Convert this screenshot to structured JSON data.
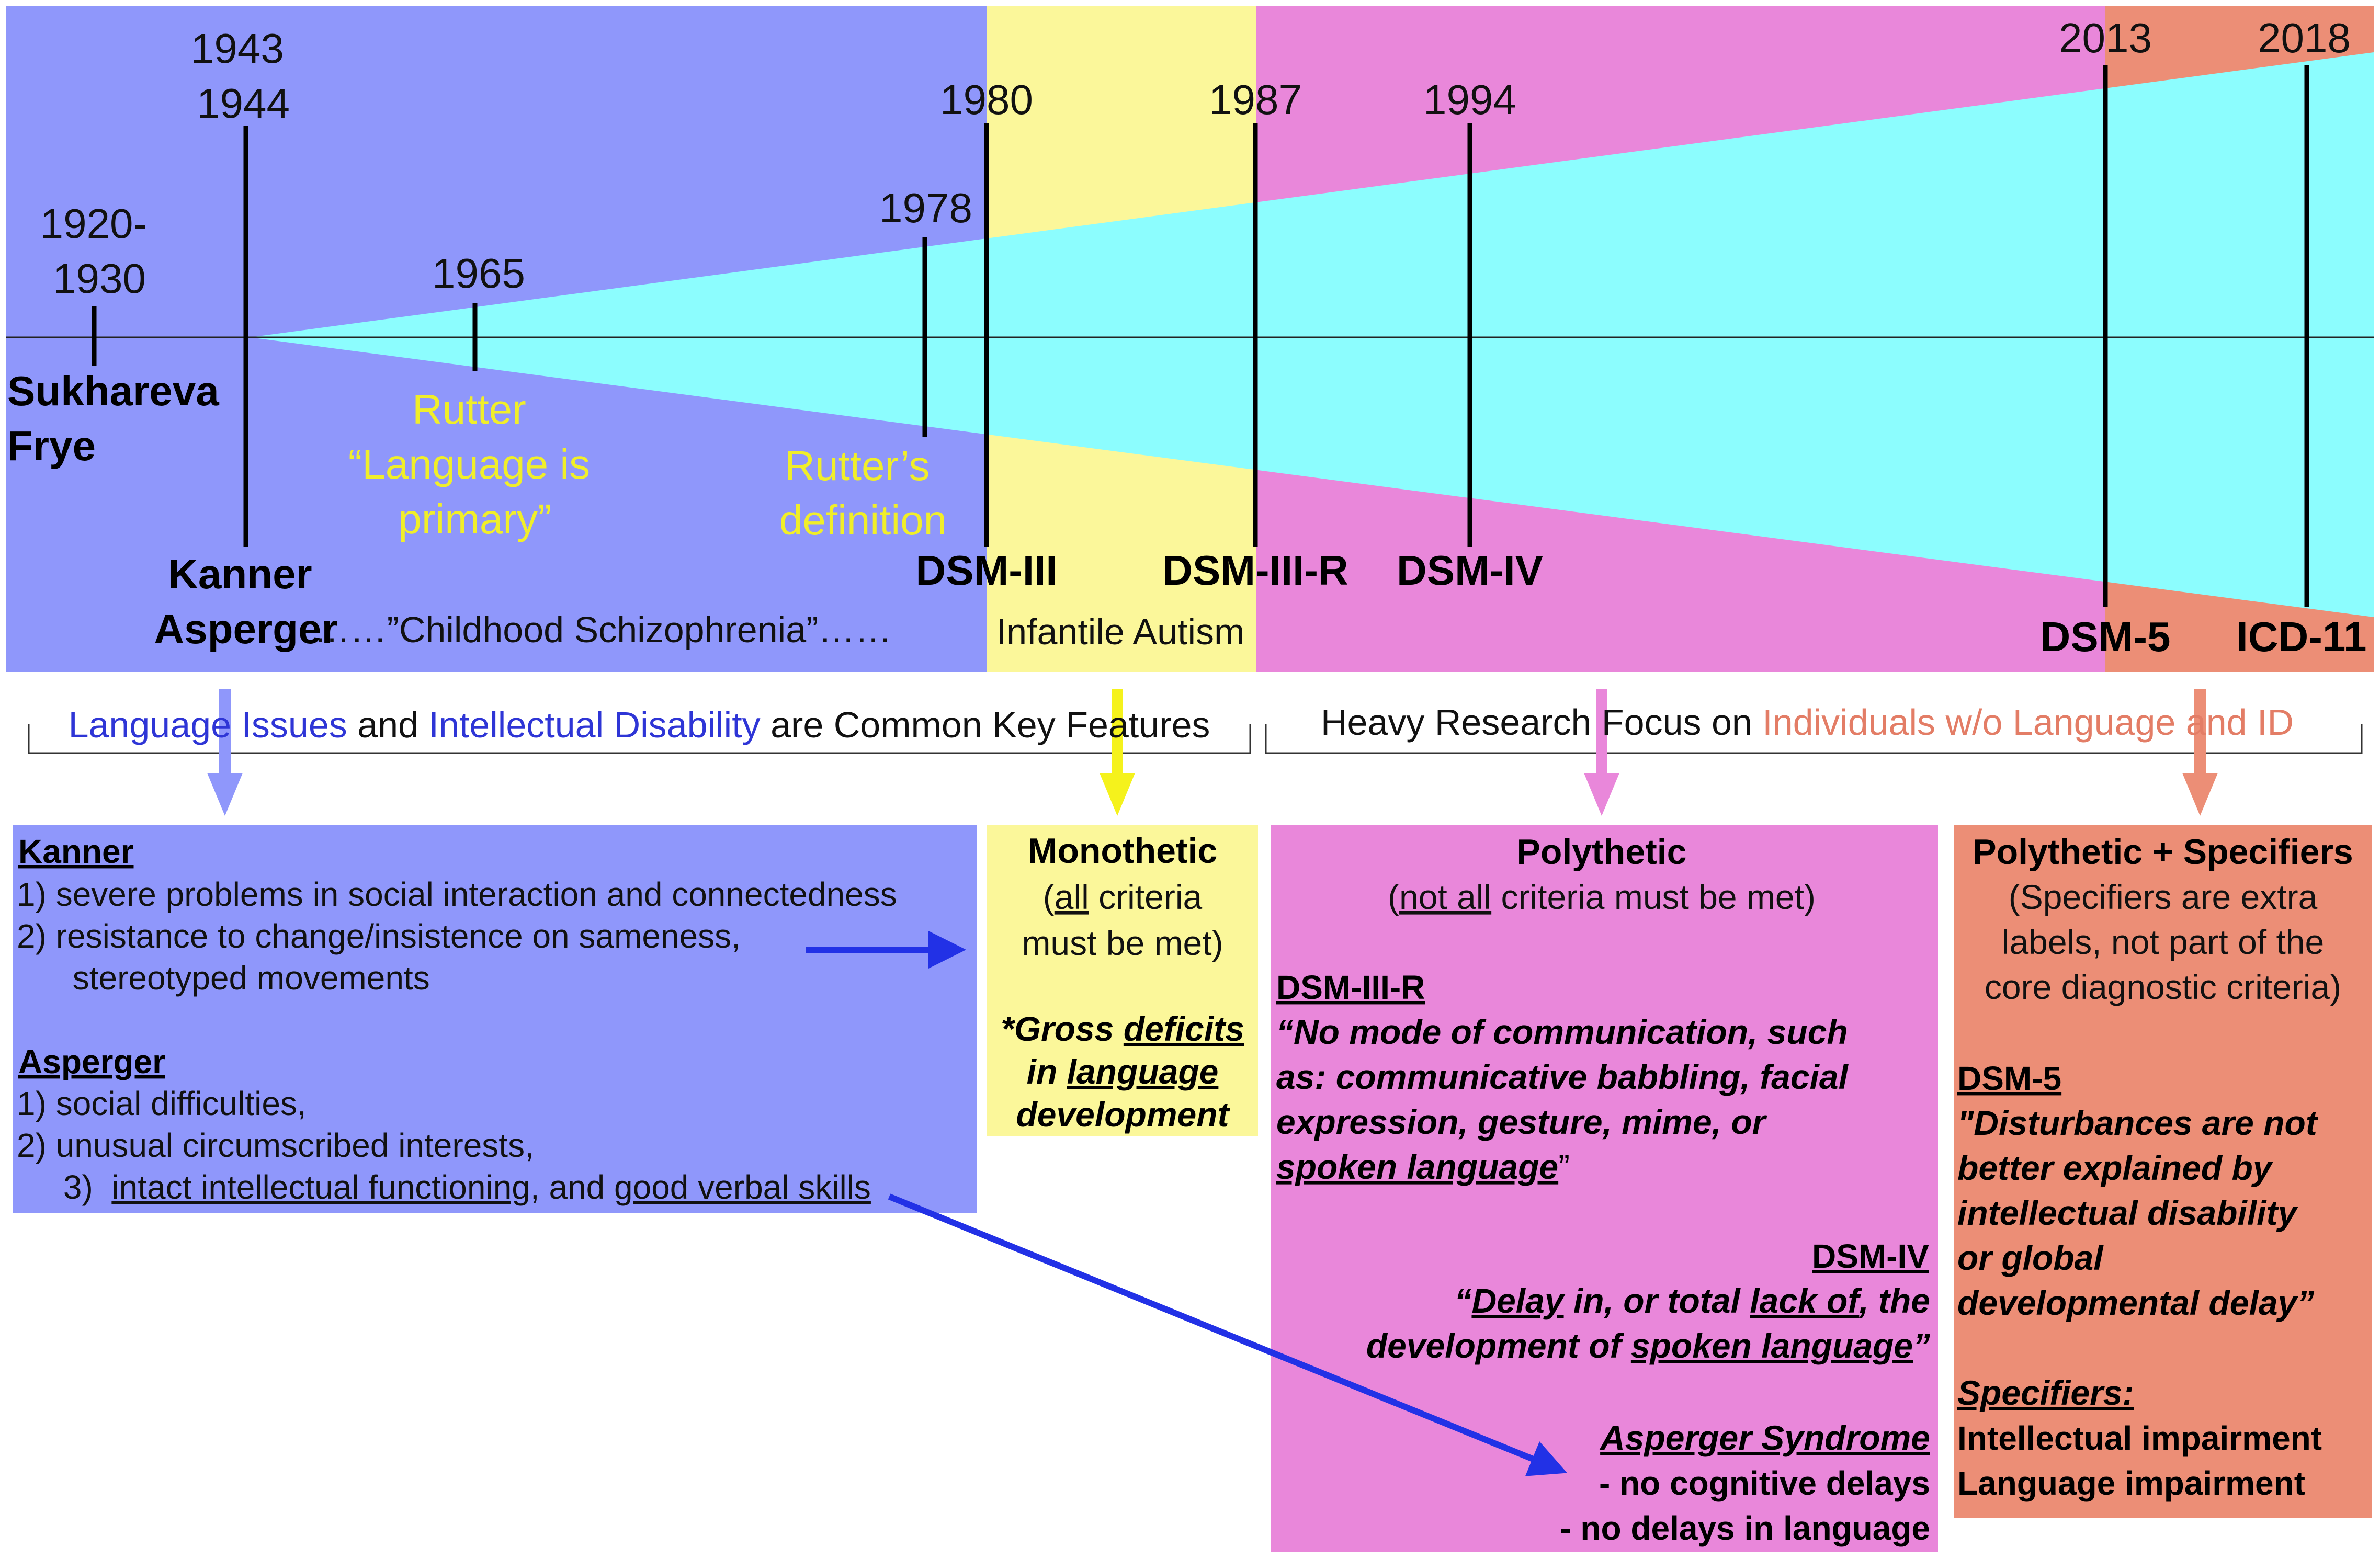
{
  "timeline": {
    "years": [
      {
        "id": "1920",
        "text": "1920-\n1930"
      },
      {
        "id": "1943",
        "text": "1943\n1944"
      },
      {
        "id": "1965",
        "text": "1965"
      },
      {
        "id": "1978",
        "text": "1978"
      },
      {
        "id": "1980",
        "text": "1980"
      },
      {
        "id": "1987",
        "text": "1987"
      },
      {
        "id": "1994",
        "text": "1994"
      },
      {
        "id": "2013",
        "text": "2013"
      },
      {
        "id": "2018",
        "text": "2018"
      }
    ],
    "people": {
      "sukhareva_frye": "Sukhareva\nFrye",
      "kanner_asperger": "Kanner\nAsperger"
    },
    "rutter_notes": {
      "language_primary": "Rutter\n“Language is\nprimary”",
      "definition": "Rutter’s\ndefinition"
    },
    "manuals": {
      "dsm_iii": "DSM-III",
      "dsm_iii_r": "DSM-III-R",
      "dsm_iv": "DSM-IV",
      "dsm_5": "DSM-5",
      "icd_11": "ICD-11"
    },
    "eras": {
      "childhood_schizophrenia": "……”Childhood Schizophrenia”……",
      "infantile_autism": "Infantile Autism"
    }
  },
  "bands": {
    "left_parts": [
      "Language Issues",
      " and ",
      "Intellectual Disability",
      " are Common Key Features"
    ],
    "right_parts": [
      "Heavy Research Focus on ",
      "Individuals w/o Language and ID"
    ]
  },
  "boxes": {
    "kanner_asperger": {
      "kanner_title": "Kanner",
      "kanner_items": [
        "1)  severe problems in social interaction and connectedness",
        "2)  resistance to change/insistence on sameness,",
        "      stereotyped movements"
      ],
      "asperger_title": "Asperger",
      "asperger_items": [
        "1)  social difficulties,",
        "2)  unusual circumscribed interests,"
      ],
      "asperger_item3": [
        "3)  ",
        "intact intellectual functioning",
        ", and ",
        "good verbal skills"
      ]
    },
    "monothetic": {
      "title": "Monothetic",
      "sub1": [
        "(",
        "all",
        " criteria"
      ],
      "sub2": "must be met)",
      "criterion": [
        [
          "*Gross ",
          "deficits"
        ],
        [
          "in ",
          "language"
        ],
        [
          "development",
          ""
        ]
      ]
    },
    "polythetic": {
      "title": "Polythetic",
      "sub": [
        "(",
        "not all",
        " criteria must be met)"
      ],
      "dsm_iii_r_label": "DSM-III-R",
      "dsm_iii_r_quote": [
        [
          "“No mode of communication, such",
          ""
        ],
        [
          "as: communicative babbling, facial",
          ""
        ],
        [
          "expression, gesture, mime, or",
          ""
        ],
        [
          "",
          "spoken language"
        ]
      ],
      "dsm_iii_r_close": "”",
      "dsm_iv_label": "DSM-IV",
      "dsm_iv_quote1": [
        "“",
        "Delay",
        " in, or total ",
        "lack of",
        ", the"
      ],
      "dsm_iv_quote2": [
        "development of ",
        "spoken language",
        "”"
      ],
      "asperger_label": "Asperger Syndrome",
      "asperger_items": [
        "- no cognitive delays",
        "- no delays in language"
      ]
    },
    "specifiers": {
      "title": "Polythetic + Specifiers",
      "sub": [
        "(Specifiers are extra",
        "labels, not part of the",
        "core diagnostic criteria)"
      ],
      "dsm5_label": "DSM-5",
      "dsm5_quote": [
        "\"Disturbances are not",
        "better explained by",
        "intellectual disability",
        "or global",
        "developmental delay”"
      ],
      "specifiers_label": "Specifiers:",
      "specifiers_items": [
        "Intellectual impairment",
        "Language impairment"
      ]
    }
  },
  "colors": {
    "era_blue": "#8f97fb",
    "era_yellow": "#fbf79a",
    "era_pink": "#e987da",
    "era_salmon": "#ec8e76",
    "wedge_cyan": "#8cfdfe",
    "rutter_text": "#f0ee2a",
    "arrow_blue": "#2231e6",
    "down_arrow_blue": "#8f97fb",
    "down_arrow_yellow": "#f5f21c",
    "down_arrow_pink": "#e987da",
    "down_arrow_salmon": "#ec8e76",
    "highlight_blue": "#2e35d6",
    "highlight_salmon": "#e37d66"
  }
}
